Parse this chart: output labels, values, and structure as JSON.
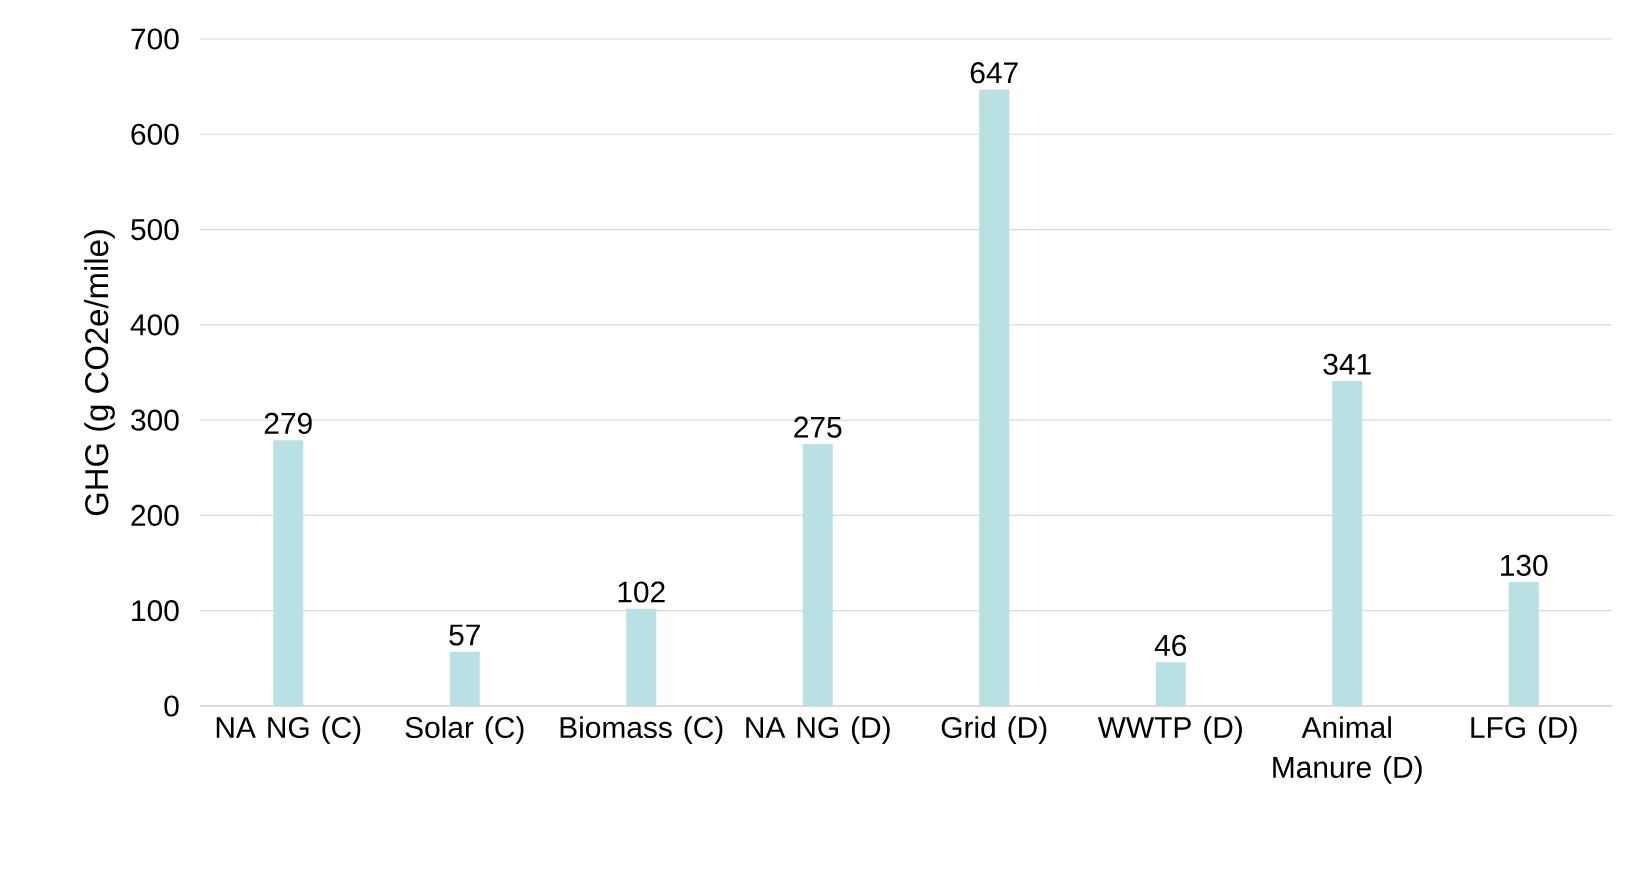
{
  "chart_data": {
    "type": "bar",
    "ylabel": "GHG (g CO2e/mile)",
    "categories": [
      "NA NG (C)",
      "Solar (C)",
      "Biomass (C)",
      "NA NG (D)",
      "Grid (D)",
      "WWTP (D)",
      "Animal Manure (D)",
      "LFG (D)"
    ],
    "values": [
      279,
      57,
      102,
      275,
      647,
      46,
      341,
      130
    ],
    "color": "#b9e0e2",
    "ylim": [
      0,
      700
    ],
    "yticks": [
      0,
      100,
      200,
      300,
      400,
      500,
      600,
      700
    ],
    "grid": "y",
    "data_labels": true
  }
}
